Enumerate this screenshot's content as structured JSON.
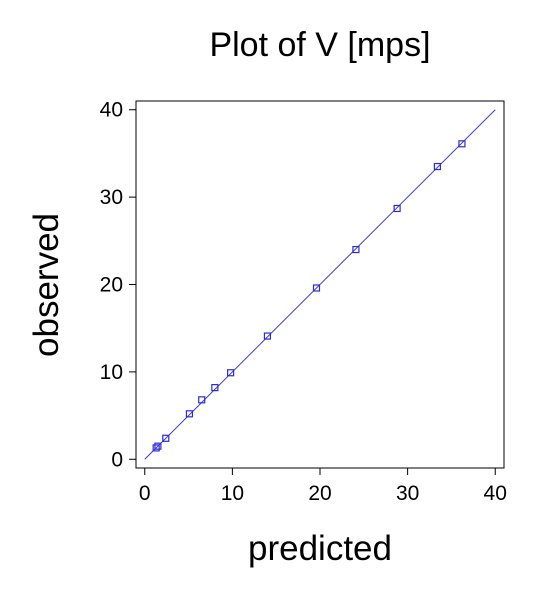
{
  "chart_data": {
    "type": "scatter",
    "title": "Plot of V [mps]",
    "xlabel": "predicted",
    "ylabel": "observed",
    "xlim": [
      -1,
      41
    ],
    "ylim": [
      -1,
      41
    ],
    "xticks": [
      "0",
      "10",
      "20",
      "30",
      "40"
    ],
    "yticks": [
      "0",
      "10",
      "20",
      "30",
      "40"
    ],
    "grid": false,
    "series": [
      {
        "x": [
          1.3,
          1.5,
          2.4,
          5.1,
          6.5,
          8.0,
          9.8,
          14.0,
          19.6,
          24.1,
          28.8,
          33.4,
          36.2
        ],
        "y": [
          1.3,
          1.5,
          2.4,
          5.2,
          6.8,
          8.2,
          9.9,
          14.1,
          19.6,
          24.0,
          28.7,
          33.5,
          36.1
        ],
        "color": "#2b2bd6"
      }
    ],
    "reference_line": {
      "x": [
        0,
        40
      ],
      "y": [
        0,
        40
      ],
      "color": "#3b3bd0"
    }
  }
}
